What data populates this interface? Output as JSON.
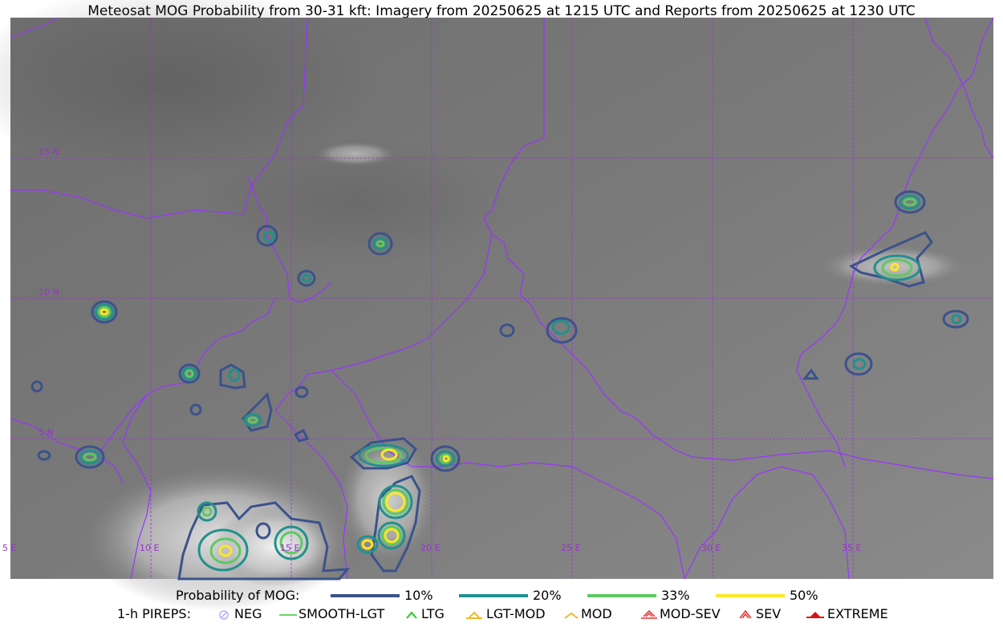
{
  "title": "Meteosat MOG Probability from 30-31 kft: Imagery from 20250625 at 1215 UTC and Reports from 20250625 at 1230 UTC",
  "latitude_labels": [
    "15 N",
    "10 N",
    "5 N"
  ],
  "longitude_labels": [
    "5 E",
    "10 E",
    "15 E",
    "20 E",
    "25 E",
    "30 E",
    "35 E"
  ],
  "legend": {
    "probability_label": "Probability of MOG:",
    "probability_levels": [
      {
        "label": "10%",
        "color": "#3b528b"
      },
      {
        "label": "20%",
        "color": "#21918c"
      },
      {
        "label": "33%",
        "color": "#5ec962"
      },
      {
        "label": "50%",
        "color": "#fde725"
      }
    ],
    "pireps_label": "1-h PIREPS:",
    "pireps": [
      {
        "label": "NEG",
        "color": "#b0b0ff",
        "icon": "neg-symbol-icon"
      },
      {
        "label": "SMOOTH-LGT",
        "color": "#33cc33",
        "icon": "line-icon"
      },
      {
        "label": "LTG",
        "color": "#22cc22",
        "icon": "caret-icon"
      },
      {
        "label": "LGT-MOD",
        "color": "#f2b820",
        "icon": "caret-bar-icon"
      },
      {
        "label": "MOD",
        "color": "#f2b820",
        "icon": "caret-icon"
      },
      {
        "label": "MOD-SEV",
        "color": "#e83030",
        "icon": "double-caret-bar-icon"
      },
      {
        "label": "SEV",
        "color": "#e83030",
        "icon": "double-caret-icon"
      },
      {
        "label": "EXTREME",
        "color": "#e01010",
        "icon": "filled-caret-icon"
      }
    ]
  },
  "colors": {
    "borders": "#9933ff",
    "gridlines": "#9933cc",
    "label": "#9933cc"
  }
}
